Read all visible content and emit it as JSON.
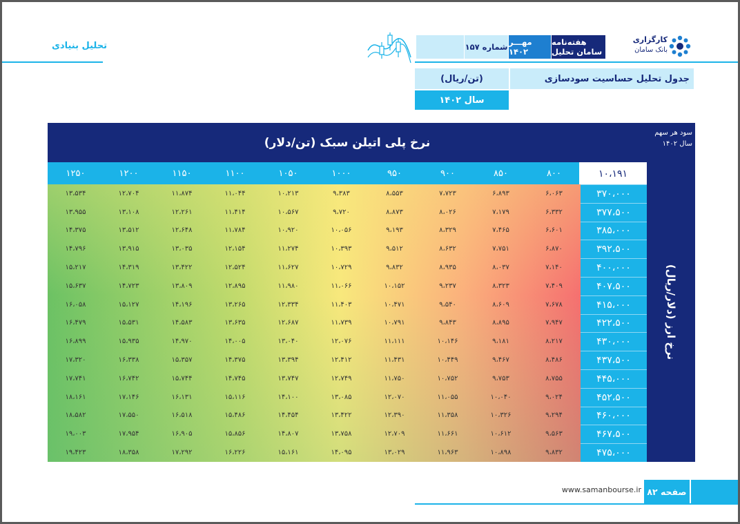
{
  "header": {
    "section_label": "تحلیل بنیادی",
    "broker_line1": "کارگزاری",
    "broker_line2": "بانک سامان",
    "weekly": "هفته‌نامه سامان تحلیل",
    "month": "مهـــر ۱۴۰۲",
    "issue": "شماره ۱۵۷",
    "title": "جدول تحلیل حساسیت سودسازی",
    "unit": "(تن/ریال)",
    "year": "سال ۱۴۰۲"
  },
  "table": {
    "title": "نرخ پلی اتیلن سبک (تن/دلار)",
    "eps_label_line1": "سود هر سهم",
    "eps_label_line2": "سال ۱۴۰۲",
    "base_value": "۱۰،۱۹۱",
    "row_axis_label": "نرخ ارز (دلار/ریال)",
    "columns": [
      "۸۰۰",
      "۸۵۰",
      "۹۰۰",
      "۹۵۰",
      "۱۰۰۰",
      "۱۰۵۰",
      "۱۱۰۰",
      "۱۱۵۰",
      "۱۲۰۰",
      "۱۲۵۰"
    ],
    "rows": [
      {
        "rate": "۳۷۰،۰۰۰",
        "values": [
          "۶،۰۶۳",
          "۶،۸۹۳",
          "۷،۷۲۳",
          "۸،۵۵۳",
          "۹،۳۸۳",
          "۱۰،۲۱۳",
          "۱۱،۰۴۴",
          "۱۱،۸۷۴",
          "۱۲،۷۰۴",
          "۱۳،۵۳۴"
        ]
      },
      {
        "rate": "۳۷۷،۵۰۰",
        "values": [
          "۶،۳۳۲",
          "۷،۱۷۹",
          "۸،۰۲۶",
          "۸،۸۷۳",
          "۹،۷۲۰",
          "۱۰،۵۶۷",
          "۱۱،۴۱۴",
          "۱۲،۲۶۱",
          "۱۳،۱۰۸",
          "۱۳،۹۵۵"
        ]
      },
      {
        "rate": "۳۸۵،۰۰۰",
        "values": [
          "۶،۶۰۱",
          "۷،۴۶۵",
          "۸،۳۲۹",
          "۹،۱۹۳",
          "۱۰،۰۵۶",
          "۱۰،۹۲۰",
          "۱۱،۷۸۴",
          "۱۲،۶۴۸",
          "۱۳،۵۱۲",
          "۱۴،۳۷۵"
        ]
      },
      {
        "rate": "۳۹۲،۵۰۰",
        "values": [
          "۶،۸۷۰",
          "۷،۷۵۱",
          "۸،۶۳۲",
          "۹،۵۱۲",
          "۱۰،۳۹۳",
          "۱۱،۲۷۴",
          "۱۲،۱۵۴",
          "۱۳،۰۳۵",
          "۱۳،۹۱۵",
          "۱۴،۷۹۶"
        ]
      },
      {
        "rate": "۴۰۰،۰۰۰",
        "values": [
          "۷،۱۴۰",
          "۸،۰۳۷",
          "۸،۹۳۵",
          "۹،۸۳۲",
          "۱۰،۷۲۹",
          "۱۱،۶۲۷",
          "۱۲،۵۲۴",
          "۱۳،۴۲۲",
          "۱۴،۳۱۹",
          "۱۵،۲۱۷"
        ]
      },
      {
        "rate": "۴۰۷،۵۰۰",
        "values": [
          "۷،۴۰۹",
          "۸،۳۲۳",
          "۹،۲۳۷",
          "۱۰،۱۵۲",
          "۱۱،۰۶۶",
          "۱۱،۹۸۰",
          "۱۲،۸۹۵",
          "۱۳،۸۰۹",
          "۱۴،۷۲۳",
          "۱۵،۶۳۷"
        ]
      },
      {
        "rate": "۴۱۵،۰۰۰",
        "values": [
          "۷،۶۷۸",
          "۸،۶۰۹",
          "۹،۵۴۰",
          "۱۰،۴۷۱",
          "۱۱،۴۰۳",
          "۱۲،۳۳۴",
          "۱۳،۲۶۵",
          "۱۴،۱۹۶",
          "۱۵،۱۲۷",
          "۱۶،۰۵۸"
        ]
      },
      {
        "rate": "۴۲۲،۵۰۰",
        "values": [
          "۷،۹۴۷",
          "۸،۸۹۵",
          "۹،۸۴۳",
          "۱۰،۷۹۱",
          "۱۱،۷۳۹",
          "۱۲،۶۸۷",
          "۱۳،۶۳۵",
          "۱۴،۵۸۳",
          "۱۵،۵۳۱",
          "۱۶،۴۷۹"
        ]
      },
      {
        "rate": "۴۳۰،۰۰۰",
        "values": [
          "۸،۲۱۷",
          "۹،۱۸۱",
          "۱۰،۱۴۶",
          "۱۱،۱۱۱",
          "۱۲،۰۷۶",
          "۱۳،۰۴۰",
          "۱۴،۰۰۵",
          "۱۴،۹۷۰",
          "۱۵،۹۳۵",
          "۱۶،۸۹۹"
        ]
      },
      {
        "rate": "۴۳۷،۵۰۰",
        "values": [
          "۸،۴۸۶",
          "۹،۴۶۷",
          "۱۰،۴۴۹",
          "۱۱،۴۳۱",
          "۱۲،۴۱۲",
          "۱۳،۳۹۴",
          "۱۴،۳۷۵",
          "۱۵،۳۵۷",
          "۱۶،۳۳۸",
          "۱۷،۳۲۰"
        ]
      },
      {
        "rate": "۴۴۵،۰۰۰",
        "values": [
          "۸،۷۵۵",
          "۹،۷۵۳",
          "۱۰،۷۵۲",
          "۱۱،۷۵۰",
          "۱۲،۷۴۹",
          "۱۳،۷۴۷",
          "۱۴،۷۴۵",
          "۱۵،۷۴۴",
          "۱۶،۷۴۲",
          "۱۷،۷۴۱"
        ]
      },
      {
        "rate": "۴۵۲،۵۰۰",
        "values": [
          "۹،۰۲۴",
          "۱۰،۰۴۰",
          "۱۱،۰۵۵",
          "۱۲،۰۷۰",
          "۱۳،۰۸۵",
          "۱۴،۱۰۰",
          "۱۵،۱۱۶",
          "۱۶،۱۳۱",
          "۱۷،۱۴۶",
          "۱۸،۱۶۱"
        ]
      },
      {
        "rate": "۴۶۰،۰۰۰",
        "values": [
          "۹،۲۹۴",
          "۱۰،۳۲۶",
          "۱۱،۳۵۸",
          "۱۲،۳۹۰",
          "۱۳،۴۲۲",
          "۱۴،۴۵۴",
          "۱۵،۴۸۶",
          "۱۶،۵۱۸",
          "۱۷،۵۵۰",
          "۱۸،۵۸۲"
        ]
      },
      {
        "rate": "۴۶۷،۵۰۰",
        "values": [
          "۹،۵۶۳",
          "۱۰،۶۱۲",
          "۱۱،۶۶۱",
          "۱۲،۷۰۹",
          "۱۳،۷۵۸",
          "۱۴،۸۰۷",
          "۱۵،۸۵۶",
          "۱۶،۹۰۵",
          "۱۷،۹۵۴",
          "۱۹،۰۰۳"
        ]
      },
      {
        "rate": "۴۷۵،۰۰۰",
        "values": [
          "۹،۸۳۲",
          "۱۰،۸۹۸",
          "۱۱،۹۶۳",
          "۱۳،۰۲۹",
          "۱۴،۰۹۵",
          "۱۵،۱۶۱",
          "۱۶،۲۲۶",
          "۱۷،۲۹۲",
          "۱۸،۳۵۸",
          "۱۹،۴۲۳"
        ]
      }
    ]
  },
  "footer": {
    "page": "صفحه ۸۲",
    "url": "www.samanbourse.ir"
  }
}
